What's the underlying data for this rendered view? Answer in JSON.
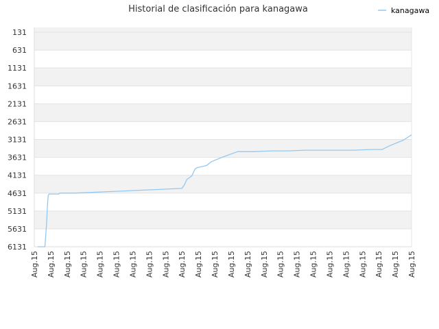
{
  "chart_data": {
    "type": "line",
    "title": "Historial de clasificación para kanagawa",
    "xlabel": "",
    "ylabel": "",
    "legend": {
      "position": "top-right",
      "entries": [
        "kanagawa"
      ]
    },
    "grid": true,
    "y_inverted": true,
    "ylim": [
      131,
      6131
    ],
    "yticks": [
      131,
      631,
      1131,
      1631,
      2131,
      2631,
      3131,
      3631,
      4131,
      4631,
      5131,
      5631,
      6131
    ],
    "xticks": [
      "Aug.15",
      "Aug.15",
      "Aug.15",
      "Aug.15",
      "Aug.15",
      "Aug.15",
      "Aug.15",
      "Aug.15",
      "Aug.15",
      "Aug.15",
      "Aug.15",
      "Aug.15",
      "Aug.15",
      "Aug.15",
      "Aug.15",
      "Aug.15",
      "Aug.15",
      "Aug.15",
      "Aug.15",
      "Aug.15",
      "Aug.15",
      "Aug.15",
      "Aug.15",
      "Aug.15"
    ],
    "series": [
      {
        "name": "kanagawa",
        "color": "#93c7f0",
        "x": [
          0.2,
          0.65,
          0.7,
          0.75,
          0.8,
          0.85,
          0.9,
          1.0,
          1.5,
          1.55,
          2.5,
          3.5,
          4.5,
          5.5,
          6.5,
          7.5,
          8.5,
          9.0,
          9.15,
          9.3,
          9.6,
          9.8,
          9.9,
          10.5,
          10.8,
          11.5,
          12.4,
          13.4,
          14.5,
          15.5,
          16.5,
          17.5,
          18.5,
          19.5,
          20.5,
          21.2,
          21.7,
          22.5,
          23.0
        ],
        "y": [
          6131,
          6131,
          5800,
          5500,
          5000,
          4700,
          4656,
          4656,
          4656,
          4630,
          4630,
          4610,
          4590,
          4570,
          4550,
          4530,
          4510,
          4500,
          4400,
          4250,
          4150,
          3960,
          3920,
          3860,
          3750,
          3620,
          3470,
          3470,
          3450,
          3450,
          3430,
          3430,
          3430,
          3430,
          3410,
          3410,
          3300,
          3150,
          3000
        ]
      }
    ]
  }
}
